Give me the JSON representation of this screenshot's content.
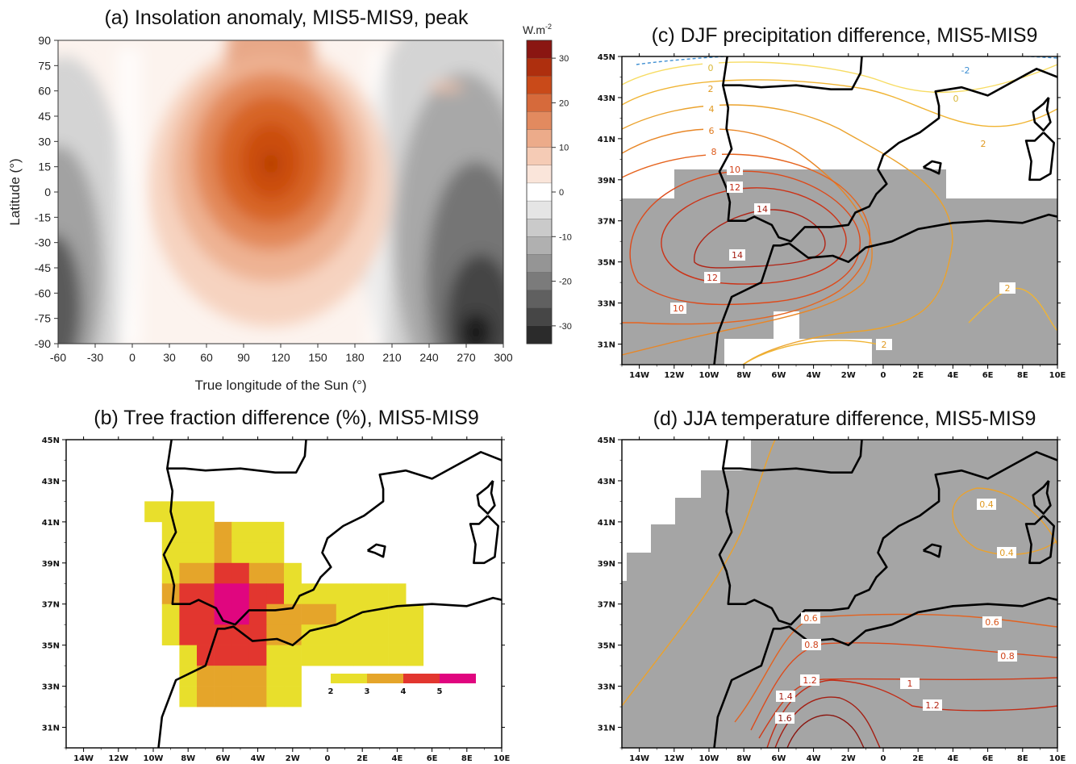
{
  "chart_data": [
    {
      "id": "a",
      "type": "contour",
      "title": "(a) Insolation anomaly, MIS5-MIS9, peak",
      "xlabel": "True longitude of the Sun (°)",
      "ylabel": "Latitude (°)",
      "xlim": [
        -60,
        300
      ],
      "ylim": [
        -90,
        90
      ],
      "xticks": [
        "-60",
        "-30",
        "0",
        "30",
        "60",
        "90",
        "120",
        "150",
        "180",
        "210",
        "240",
        "270",
        "300"
      ],
      "yticks": [
        "90",
        "75",
        "60",
        "45",
        "30",
        "15",
        "0",
        "-15",
        "-30",
        "-45",
        "-60",
        "-75",
        "-90"
      ],
      "colorbar": {
        "title": "W.m",
        "title_sup": "-2",
        "ticks": [
          "30",
          "20",
          "10",
          "0",
          "-10",
          "-20",
          "-30"
        ],
        "range": [
          -34,
          34
        ],
        "step": 4
      },
      "features": [
        {
          "kind": "peak",
          "x": 108,
          "y": 15,
          "value": 22
        },
        {
          "kind": "trough",
          "x": 275,
          "y": -85,
          "value": -34
        }
      ],
      "colors": {
        "positive": "#c0400e",
        "negative": "#2a2a2a",
        "neutral": "#ffffff"
      }
    },
    {
      "id": "b",
      "type": "heatmap",
      "title": "(b) Tree fraction difference (%), MIS5-MIS9",
      "xticks": [
        "14W",
        "12W",
        "10W",
        "8W",
        "6W",
        "4W",
        "2W",
        "0",
        "2E",
        "4E",
        "6E",
        "8E",
        "10E"
      ],
      "yticks": [
        "45N",
        "43N",
        "41N",
        "39N",
        "37N",
        "35N",
        "33N",
        "31N"
      ],
      "xlim": [
        -15,
        10
      ],
      "ylim": [
        30,
        45
      ],
      "legend": {
        "ticks": [
          "2",
          "3",
          "4",
          "5"
        ],
        "colors": [
          "#e8df2c",
          "#e5a52a",
          "#e2362f",
          "#e0067f"
        ]
      },
      "cells_lon_lat_value": [
        [
          -10,
          41.5,
          2
        ],
        [
          -9,
          41.5,
          2
        ],
        [
          -8,
          41.5,
          2
        ],
        [
          -7,
          41.5,
          2
        ],
        [
          -9,
          40.5,
          2
        ],
        [
          -8,
          40.5,
          2
        ],
        [
          -7,
          40.5,
          2
        ],
        [
          -6,
          40.5,
          3
        ],
        [
          -5,
          40.5,
          2
        ],
        [
          -4,
          40.5,
          2
        ],
        [
          -3,
          40.5,
          2
        ],
        [
          -9,
          39.5,
          2
        ],
        [
          -8,
          39.5,
          2
        ],
        [
          -7,
          39.5,
          2
        ],
        [
          -6,
          39.5,
          3
        ],
        [
          -5,
          39.5,
          2
        ],
        [
          -4,
          39.5,
          2
        ],
        [
          -3,
          39.5,
          2
        ],
        [
          -9,
          38.5,
          2
        ],
        [
          -8,
          38.5,
          3
        ],
        [
          -7,
          38.5,
          3
        ],
        [
          -6,
          38.5,
          4
        ],
        [
          -5,
          38.5,
          4
        ],
        [
          -4,
          38.5,
          3
        ],
        [
          -3,
          38.5,
          3
        ],
        [
          -2,
          38.5,
          2
        ],
        [
          -9,
          37.5,
          3
        ],
        [
          -8,
          37.5,
          4
        ],
        [
          -7,
          37.5,
          4
        ],
        [
          -6,
          37.5,
          5
        ],
        [
          -5,
          37.5,
          5
        ],
        [
          -4,
          37.5,
          4
        ],
        [
          -3,
          37.5,
          4
        ],
        [
          -2,
          37.5,
          2
        ],
        [
          -1,
          37.5,
          2
        ],
        [
          0,
          37.5,
          2
        ],
        [
          1,
          37.5,
          2
        ],
        [
          2,
          37.5,
          2
        ],
        [
          3,
          37.5,
          2
        ],
        [
          4,
          37.5,
          2
        ],
        [
          -9,
          36.5,
          2
        ],
        [
          -8,
          36.5,
          4
        ],
        [
          -7,
          36.5,
          4
        ],
        [
          -6,
          36.5,
          5
        ],
        [
          -5,
          36.5,
          5
        ],
        [
          -4,
          36.5,
          4
        ],
        [
          -3,
          36.5,
          3
        ],
        [
          -2,
          36.5,
          3
        ],
        [
          -1,
          36.5,
          3
        ],
        [
          0,
          36.5,
          3
        ],
        [
          1,
          36.5,
          2
        ],
        [
          2,
          36.5,
          2
        ],
        [
          3,
          36.5,
          2
        ],
        [
          4,
          36.5,
          2
        ],
        [
          5,
          36.5,
          2
        ],
        [
          -9,
          35.5,
          2
        ],
        [
          -8,
          35.5,
          4
        ],
        [
          -7,
          35.5,
          4
        ],
        [
          -6,
          35.5,
          4
        ],
        [
          -5,
          35.5,
          4
        ],
        [
          -4,
          35.5,
          4
        ],
        [
          -3,
          35.5,
          3
        ],
        [
          -2,
          35.5,
          3
        ],
        [
          -1,
          35.5,
          2
        ],
        [
          0,
          35.5,
          2
        ],
        [
          1,
          35.5,
          2
        ],
        [
          2,
          35.5,
          2
        ],
        [
          3,
          35.5,
          2
        ],
        [
          4,
          35.5,
          2
        ],
        [
          5,
          35.5,
          2
        ],
        [
          -8,
          34.5,
          2
        ],
        [
          -7,
          34.5,
          4
        ],
        [
          -6,
          34.5,
          4
        ],
        [
          -5,
          34.5,
          4
        ],
        [
          -4,
          34.5,
          4
        ],
        [
          -3,
          34.5,
          2
        ],
        [
          -2,
          34.5,
          2
        ],
        [
          -1,
          34.5,
          2
        ],
        [
          0,
          34.5,
          2
        ],
        [
          1,
          34.5,
          2
        ],
        [
          2,
          34.5,
          2
        ],
        [
          3,
          34.5,
          2
        ],
        [
          4,
          34.5,
          2
        ],
        [
          5,
          34.5,
          2
        ],
        [
          -8,
          33.5,
          2
        ],
        [
          -7,
          33.5,
          3
        ],
        [
          -6,
          33.5,
          3
        ],
        [
          -5,
          33.5,
          3
        ],
        [
          -4,
          33.5,
          3
        ],
        [
          -3,
          33.5,
          2
        ],
        [
          -2,
          33.5,
          2
        ],
        [
          -8,
          32.5,
          2
        ],
        [
          -7,
          32.5,
          3
        ],
        [
          -6,
          32.5,
          3
        ],
        [
          -5,
          32.5,
          3
        ],
        [
          -4,
          32.5,
          3
        ],
        [
          -3,
          32.5,
          2
        ],
        [
          -2,
          32.5,
          2
        ]
      ]
    },
    {
      "id": "c",
      "type": "contour",
      "title": "(c) DJF precipitation difference, MIS5-MIS9",
      "xticks": [
        "14W",
        "12W",
        "10W",
        "8W",
        "6W",
        "4W",
        "2W",
        "0",
        "2E",
        "4E",
        "6E",
        "8E",
        "10E"
      ],
      "yticks": [
        "45N",
        "43N",
        "41N",
        "39N",
        "37N",
        "35N",
        "33N",
        "31N"
      ],
      "xlim": [
        -15,
        10
      ],
      "ylim": [
        30,
        45
      ],
      "contour_labels": [
        "-2",
        "0",
        "0",
        "2",
        "2",
        "2",
        "2",
        "4",
        "6",
        "8",
        "10",
        "10",
        "12",
        "12",
        "14",
        "14"
      ],
      "shading": "grey mask",
      "colors": {
        "mask": "#a5a5a5",
        "negative": "#3f8fd2"
      }
    },
    {
      "id": "d",
      "type": "contour",
      "title": "(d) JJA temperature difference, MIS5-MIS9",
      "xticks": [
        "14W",
        "12W",
        "10W",
        "8W",
        "6W",
        "4W",
        "2W",
        "0",
        "2E",
        "4E",
        "6E",
        "8E",
        "10E"
      ],
      "yticks": [
        "45N",
        "43N",
        "41N",
        "39N",
        "37N",
        "35N",
        "33N",
        "31N"
      ],
      "xlim": [
        -15,
        10
      ],
      "ylim": [
        30,
        45
      ],
      "contour_labels": [
        "0.4",
        "0.4",
        "0.6",
        "0.6",
        "0.8",
        "0.8",
        "1",
        "1.2",
        "1.2",
        "1.4",
        "1.6"
      ],
      "shading": "grey mask",
      "colors": {
        "mask": "#a5a5a5"
      }
    }
  ]
}
